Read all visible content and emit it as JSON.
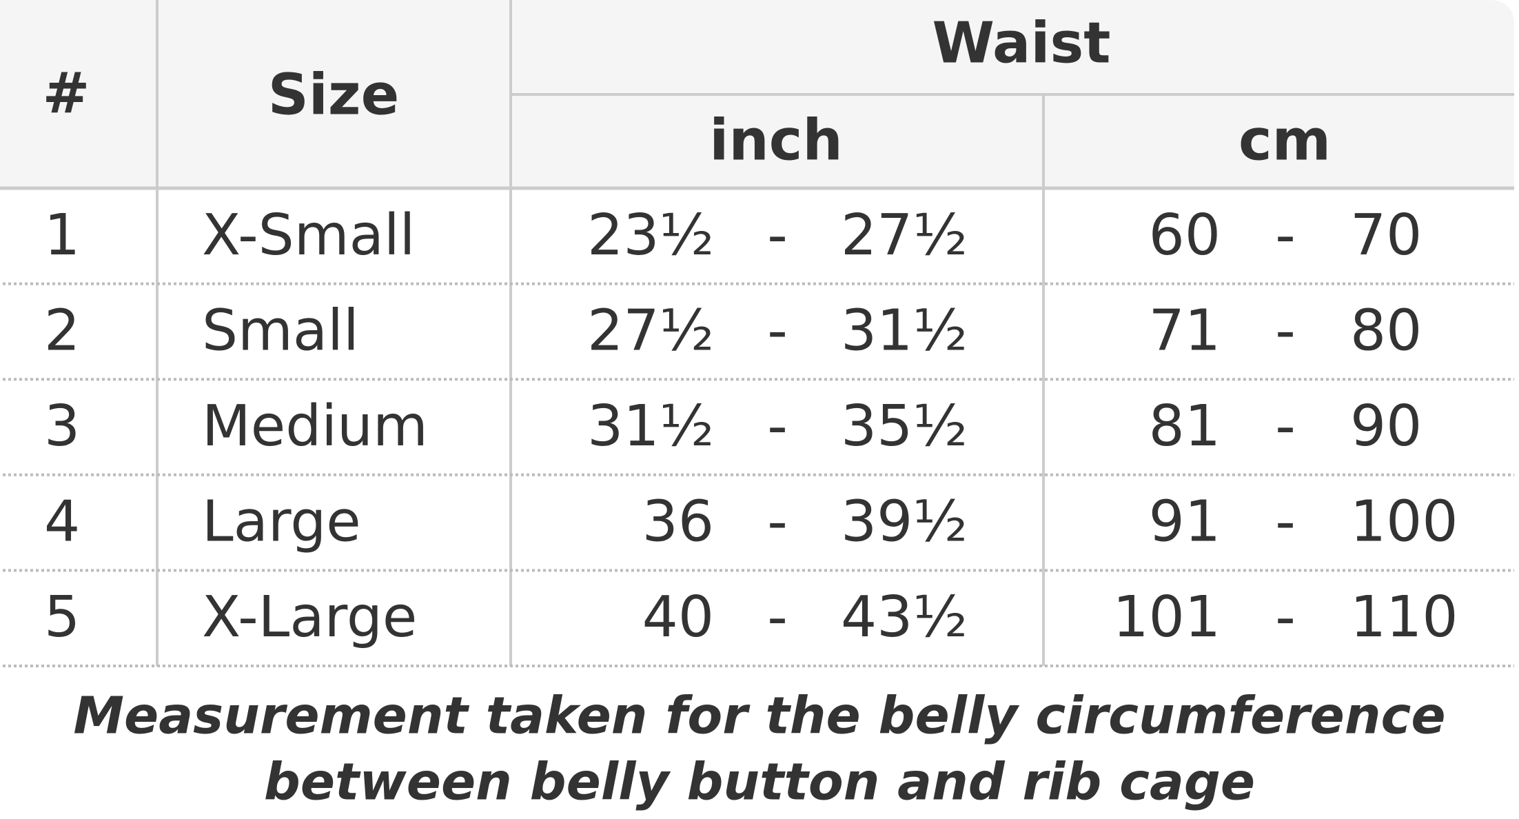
{
  "table": {
    "header": {
      "number": "#",
      "size": "Size",
      "group": "Waist",
      "inch": "inch",
      "cm": "cm"
    },
    "rows": [
      [
        "1",
        "X-Small",
        "23½",
        "-",
        "27½",
        "60",
        "-",
        "70"
      ],
      [
        "2",
        "Small",
        "27½",
        "-",
        "31½",
        "71",
        "-",
        "80"
      ],
      [
        "3",
        "Medium",
        "31½",
        "-",
        "35½",
        "81",
        "-",
        "90"
      ],
      [
        "4",
        "Large",
        "36",
        "-",
        "39½",
        "91",
        "-",
        "100"
      ],
      [
        "5",
        "X-Large",
        "40",
        "-",
        "43½",
        "101",
        "-",
        "110"
      ]
    ]
  },
  "caption": [
    "Measurement taken for the belly circumference",
    "between belly button and rib cage"
  ]
}
